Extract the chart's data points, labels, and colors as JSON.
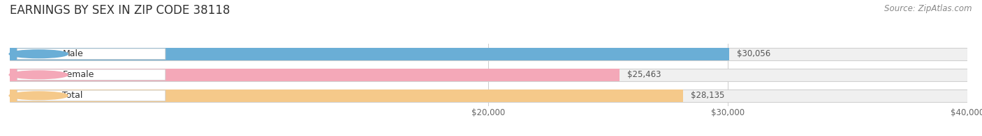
{
  "title": "EARNINGS BY SEX IN ZIP CODE 38118",
  "source": "Source: ZipAtlas.com",
  "categories": [
    "Male",
    "Female",
    "Total"
  ],
  "values": [
    30056,
    25463,
    28135
  ],
  "bar_colors": [
    "#6aaed6",
    "#f4a8b8",
    "#f5c98a"
  ],
  "bg_bar_color": "#f0f0f0",
  "xmin": 0,
  "xmax": 40000,
  "xticks": [
    20000,
    30000,
    40000
  ],
  "xtick_labels": [
    "$20,000",
    "$30,000",
    "$40,000"
  ],
  "title_fontsize": 12,
  "source_fontsize": 8.5,
  "label_fontsize": 9,
  "value_fontsize": 8.5,
  "bar_height": 0.6,
  "background_color": "#ffffff",
  "pill_text_color": "#333333",
  "value_text_color": "#555555",
  "grid_color": "#cccccc",
  "border_color": "#d0d0d0"
}
